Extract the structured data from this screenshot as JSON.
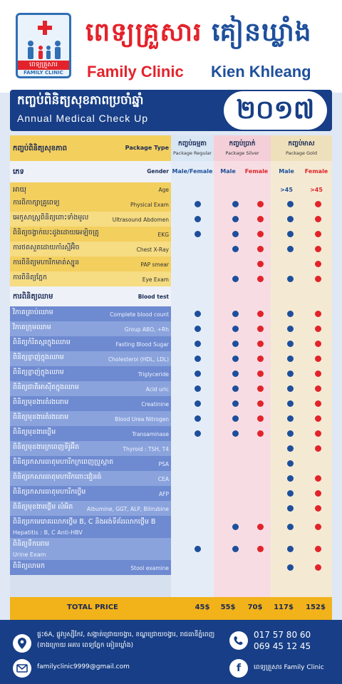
{
  "header": {
    "logo": {
      "name_kh": "ពេទ្យគ្រួសារ",
      "name_en": "FAMILY CLINIC"
    },
    "title_kh_red": "ពេទ្យគ្រួសារ",
    "title_kh_blue": "គៀនឃ្លាំង",
    "title_en_red": "Family Clinic",
    "title_en_blue": "Kien Khleang"
  },
  "banner": {
    "title_kh": "កញ្ចប់ពិនិត្យសុខភាពប្រចាំឆ្នាំ",
    "title_en": "Annual Medical Check Up",
    "year": "២០១៧"
  },
  "table": {
    "package_type_kh": "កញ្ចប់ពិនិត្យសុខភាព",
    "package_type_en": "Package Type",
    "packages": [
      {
        "kh": "កញ្ចប់ធម្មតា",
        "en": "Package Regular"
      },
      {
        "kh": "កញ្ចប់ប្រាក់",
        "en": "Package Silver"
      },
      {
        "kh": "កញ្ចប់មាស",
        "en": "Package Gold"
      }
    ],
    "gender_kh": "ភេទ",
    "gender_en": "Gender",
    "gender_cols": [
      "Male/Female",
      "Male",
      "Female",
      "Male",
      "Female"
    ],
    "age_kh": "អាយុ",
    "age_en": "Age",
    "age_gold_male": ">45",
    "age_gold_female": ">45",
    "blood_test_kh": "ការពិនិត្យឈាម",
    "blood_test_en": "Blood test",
    "rows": [
      {
        "kh": "ការពិភាក្សាគ្រូពេទ្យ",
        "en": "Physical Exam",
        "marks": [
          1,
          1,
          1,
          1,
          1
        ]
      },
      {
        "kh": "អេកូសាស្ត្រពិនិត្យពោះទាំងមូល",
        "en": "Ultrasound Abdomen",
        "marks": [
          1,
          1,
          1,
          1,
          1
        ]
      },
      {
        "kh": "ពិនិត្យចង្វាក់បេះដូងដោយអេឡិចត្រូ",
        "en": "EKG",
        "marks": [
          1,
          1,
          1,
          1,
          1
        ]
      },
      {
        "kh": "ការថតសួតដោយកាំរស្មីអ៊ិច",
        "en": "Chest X-Ray",
        "marks": [
          0,
          1,
          1,
          1,
          1
        ]
      },
      {
        "kh": "ការពិនិត្យមហារីកមាត់ស្បូន",
        "en": "PAP smear",
        "marks": [
          0,
          0,
          1,
          0,
          1
        ]
      },
      {
        "kh": "ការពិនិត្យភ្នែក",
        "en": "Eye Exam",
        "marks": [
          0,
          1,
          1,
          1,
          1
        ]
      },
      {
        "kh": "វិភាគគ្រាប់ឈាម",
        "en": "Complete blood count",
        "marks": [
          1,
          1,
          1,
          1,
          1
        ]
      },
      {
        "kh": "វិភាគក្រុមឈាម",
        "en": "Group ABO, +Rh",
        "marks": [
          1,
          1,
          1,
          1,
          1
        ]
      },
      {
        "kh": "ពិនិត្យកំរិតស្ករក្នុងឈាម",
        "en": "Fasting Blood Sugar",
        "marks": [
          1,
          1,
          1,
          1,
          1
        ]
      },
      {
        "kh": "ពិនិត្យខ្លាញ់ក្នុងឈាម",
        "en": "Cholesterol (HDL, LDL)",
        "marks": [
          1,
          1,
          1,
          1,
          1
        ]
      },
      {
        "kh": "ពិនិត្យខ្លាញ់ក្នុងឈាម",
        "en": "Triglyceride",
        "marks": [
          1,
          1,
          1,
          1,
          1
        ]
      },
      {
        "kh": "ពិនិត្យជាតិអាស៊ីតក្នុងឈាម",
        "en": "Acid uric",
        "marks": [
          1,
          1,
          1,
          1,
          1
        ]
      },
      {
        "kh": "ពិនិត្យមុខងារតំរងនោម",
        "en": "Creatinine",
        "marks": [
          1,
          1,
          1,
          1,
          1
        ]
      },
      {
        "kh": "ពិនិត្យមុខងារតំរងនោម",
        "en": "Blood Urea Nitrogen",
        "marks": [
          1,
          1,
          1,
          1,
          1
        ]
      },
      {
        "kh": "ពិនិត្យមុខងារថ្លើម",
        "en": "Transaminase",
        "marks": [
          1,
          1,
          1,
          1,
          1
        ]
      },
      {
        "kh": "ពិនិត្យមុខងារក្រពេញទីរ៉ូអ៊ីត",
        "en": "Thyroid : TSH, T4",
        "marks": [
          0,
          0,
          0,
          1,
          1
        ]
      },
      {
        "kh": "ពិនិត្យរកសារធាតុមហារីកក្រពេញប្រូស្តាត",
        "en": "PSA",
        "marks": [
          0,
          0,
          0,
          1,
          0
        ]
      },
      {
        "kh": "ពិនិត្យរកសារធាតុមហារីកពោះវៀនធំ",
        "en": "CEA",
        "marks": [
          0,
          0,
          0,
          1,
          1
        ]
      },
      {
        "kh": "ពិនិត្យរកសារធាតុមហារីកថ្លើម",
        "en": "AFP",
        "marks": [
          0,
          0,
          0,
          1,
          1
        ]
      },
      {
        "kh": "ពិនិត្យមុខងារថ្លើម លំអិត",
        "en": "Albumine, GGT, ALP, Bilirubine",
        "marks": [
          0,
          0,
          0,
          1,
          1
        ]
      },
      {
        "kh": "ពិនិត្យរកមេរោគរលាកថ្លើម B, C និងអង់ទីគ័ររលាកថ្លើម B",
        "en": "Hepatitis : B, C Anti-HBV",
        "marks": [
          0,
          1,
          1,
          1,
          1
        ]
      },
      {
        "kh": "ពិនិត្យទឹកនោម",
        "en": "Urine Exam",
        "marks": [
          1,
          1,
          1,
          1,
          1
        ]
      },
      {
        "kh": "ពិនិត្យលាមក",
        "en": "Stool examine",
        "marks": [
          0,
          0,
          0,
          1,
          1
        ]
      }
    ],
    "total_label": "TOTAL PRICE",
    "prices": [
      "45$",
      "55$",
      "70$",
      "117$",
      "152$"
    ]
  },
  "footer": {
    "address_line1": "ផ្ទះ6A, ផ្លូវឫស្សីកែវ, សង្កាត់ជ្រោយចង្វារ, ខណ្ឌជ្រោយចង្វារ, រាជធានីភ្នំពេញ",
    "address_line2": "(ខាងក្រោយ អគារ ពេទ្យភ្នែក គៀនឃ្លាំង)",
    "email": "familyclinic9999@gmail.com",
    "phone1": "017 57 80 60",
    "phone2": "069 45 12 45",
    "facebook": "ពេទ្យគ្រួសារ Family Clinic"
  },
  "colors": {
    "red": "#e3232b",
    "navy": "#173e86",
    "blue_dot": "#1e4f9c",
    "gold": "#f2b21a"
  }
}
